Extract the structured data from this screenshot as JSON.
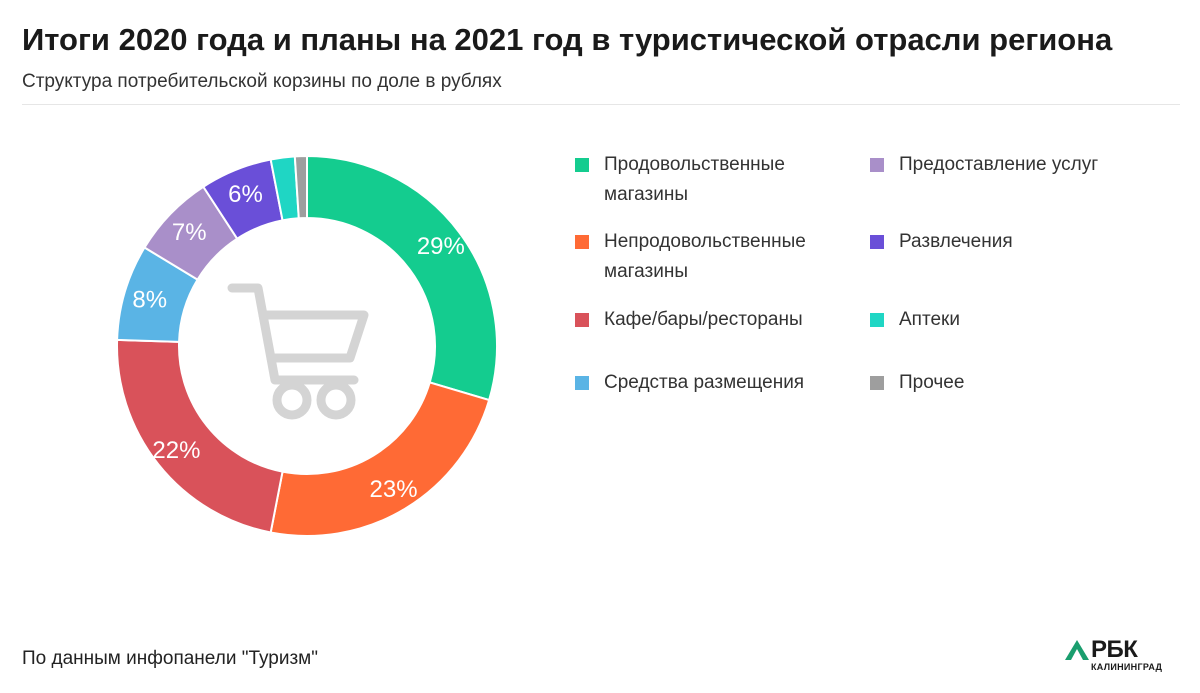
{
  "header": {
    "title": "Итоги 2020 года и планы на 2021 год в туристической отрасли региона",
    "subtitle": "Структура потребительской корзины по доле в рублях"
  },
  "footer": {
    "source": "По данным инфопанели \"Туризм\"",
    "logo_text": "РБК",
    "logo_sub": "КАЛИНИНГРАД"
  },
  "center_icon": "shopping-cart-icon",
  "chart_data": {
    "type": "pie",
    "variant": "donut",
    "categories": [
      "Продовольственные магазины",
      "Непродовольственные магазины",
      "Кафе/бары/рестораны",
      "Средства размещения",
      "Предоставление услуг",
      "Развлечения",
      "Аптеки",
      "Прочее"
    ],
    "values": [
      29,
      23,
      22,
      8,
      7,
      6,
      2,
      1
    ],
    "labels": [
      "29%",
      "23%",
      "22%",
      "8%",
      "7%",
      "6%",
      "",
      ""
    ],
    "colors": [
      "#14cc8f",
      "#ff6a35",
      "#d9525a",
      "#5ab4e5",
      "#a98fc9",
      "#6a4fd8",
      "#1fd6c4",
      "#9e9e9e"
    ],
    "legend_placement": "right",
    "start_angle_deg": 0,
    "direction": "clockwise"
  }
}
